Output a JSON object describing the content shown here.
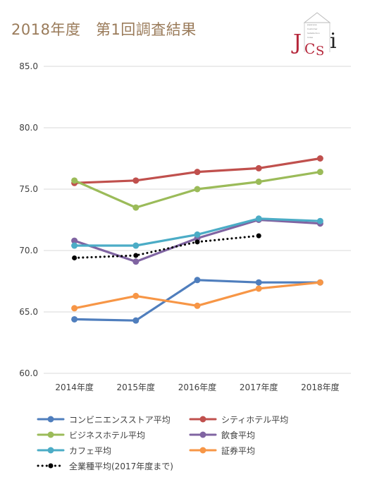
{
  "header": {
    "title": "2018年度　第1回調査結果",
    "logo_letters": "JCSI",
    "logo_small_text": "Japanese Customer Satisfaction Index"
  },
  "chart_data": {
    "type": "line",
    "title": "",
    "xlabel": "",
    "ylabel": "",
    "categories": [
      "2014年度",
      "2015年度",
      "2016年度",
      "2017年度",
      "2018年度"
    ],
    "ylim": [
      60,
      85
    ],
    "yticks": [
      "60.0",
      "65.0",
      "70.0",
      "75.0",
      "80.0",
      "85.0"
    ],
    "grid": true,
    "legend_position": "bottom",
    "series": [
      {
        "name": "コンビニエンスストア平均",
        "color": "#4f7ebd",
        "dashed": false,
        "values": [
          64.4,
          64.3,
          67.6,
          67.4,
          67.4
        ]
      },
      {
        "name": "シティホテル平均",
        "color": "#c0504d",
        "dashed": false,
        "values": [
          75.5,
          75.7,
          76.4,
          76.7,
          77.5
        ]
      },
      {
        "name": "ビジネスホテル平均",
        "color": "#9bbb59",
        "dashed": false,
        "values": [
          75.7,
          73.5,
          75.0,
          75.6,
          76.4
        ]
      },
      {
        "name": "飲食平均",
        "color": "#8064a2",
        "dashed": false,
        "values": [
          70.8,
          69.1,
          71.0,
          72.5,
          72.2
        ]
      },
      {
        "name": "カフェ平均",
        "color": "#4bacc6",
        "dashed": false,
        "values": [
          70.4,
          70.4,
          71.3,
          72.6,
          72.4
        ]
      },
      {
        "name": "証券平均",
        "color": "#f79646",
        "dashed": false,
        "values": [
          65.3,
          66.3,
          65.5,
          66.9,
          67.4
        ]
      },
      {
        "name": "全業種平均(2017年度まで)",
        "color": "#000000",
        "dashed": true,
        "values": [
          69.4,
          69.6,
          70.7,
          71.2,
          null
        ]
      }
    ]
  }
}
